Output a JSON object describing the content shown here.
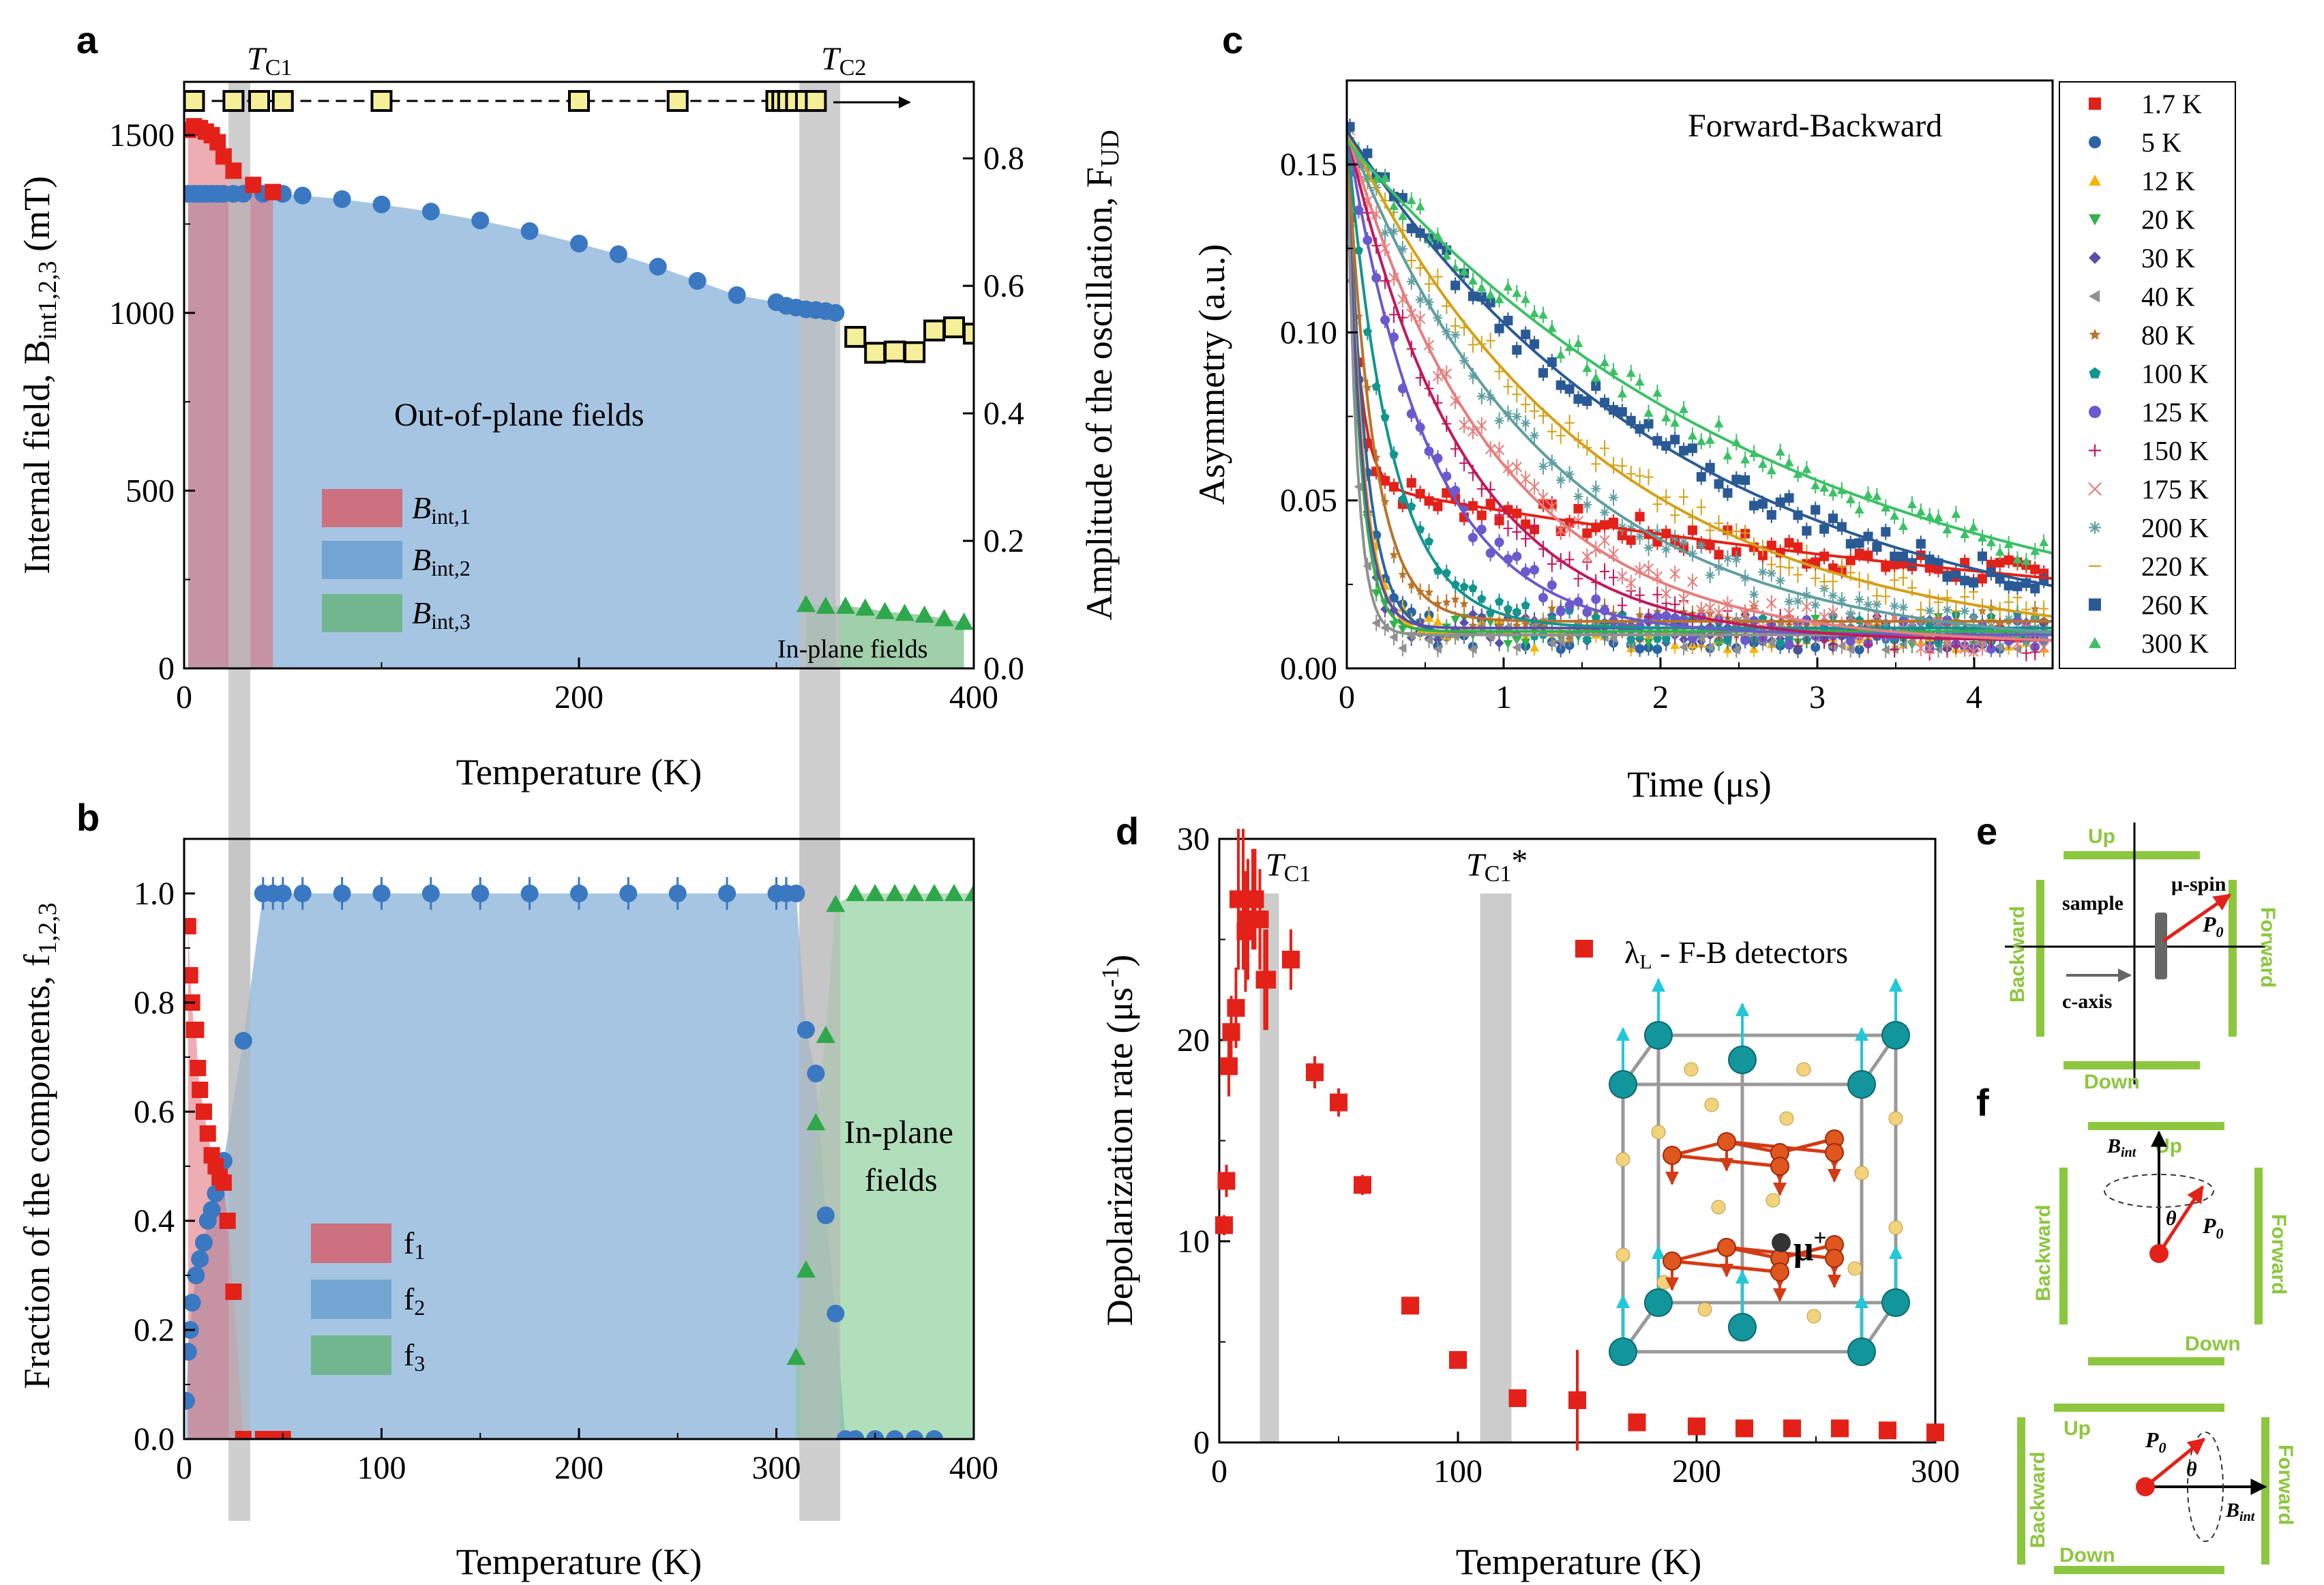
{
  "chart_data": [
    {
      "id": "a",
      "type": "scatter",
      "panel_label": "a",
      "xlabel": "Temperature (K)",
      "ylabel": "Internal field, B",
      "ylabel_sub": "int1,2,3",
      "ylabel_unit": " (mT)",
      "y2label": "Amplitude of the oscillation, F",
      "y2label_sub": "UD",
      "xlim": [
        0,
        400
      ],
      "ylim": [
        0,
        1650
      ],
      "y2lim": [
        0,
        0.92
      ],
      "xticks": [
        "0",
        "200",
        "400"
      ],
      "yticks": [
        "0",
        "500",
        "1000",
        "1500"
      ],
      "y2ticks": [
        "0.0",
        "0.2",
        "0.4",
        "0.6",
        "0.8"
      ],
      "markers": {
        "tc1": "T",
        "tc1_sub": "C1",
        "tc2": "T",
        "tc2_sub": "C2",
        "tc1_T": 28,
        "tc2_T": 322
      },
      "annotations": {
        "out_of_plane": "Out-of-plane fields",
        "in_plane": "In-plane fields"
      },
      "legend": [
        {
          "name": "B",
          "sub": "int,1",
          "color": "#d9535f"
        },
        {
          "name": "B",
          "sub": "int,2",
          "color": "#6a9fd0"
        },
        {
          "name": "B",
          "sub": "int,3",
          "color": "#5fb072"
        }
      ],
      "series": [
        {
          "name": "B_int,1",
          "color": "#e32119",
          "x": [
            2,
            5,
            8,
            11,
            14,
            17,
            20,
            25,
            35,
            45
          ],
          "y": [
            1515,
            1525,
            1520,
            1510,
            1500,
            1480,
            1440,
            1400,
            1360,
            1340
          ]
        },
        {
          "name": "B_int,2",
          "color": "#3a78c1",
          "x": [
            2,
            5,
            8,
            11,
            14,
            17,
            20,
            25,
            30,
            40,
            50,
            60,
            80,
            100,
            125,
            150,
            175,
            200,
            220,
            240,
            260,
            280,
            300,
            305,
            310,
            315,
            320,
            325,
            330
          ],
          "y": [
            1335,
            1335,
            1335,
            1335,
            1335,
            1335,
            1335,
            1335,
            1335,
            1335,
            1335,
            1330,
            1320,
            1305,
            1285,
            1260,
            1230,
            1195,
            1165,
            1130,
            1090,
            1050,
            1030,
            1020,
            1015,
            1010,
            1008,
            1005,
            1000
          ]
        },
        {
          "name": "B_int,3",
          "color": "#2ea84b",
          "x": [
            315,
            325,
            335,
            345,
            355,
            365,
            375,
            385,
            395
          ],
          "y": [
            180,
            175,
            175,
            170,
            160,
            155,
            150,
            140,
            130
          ]
        },
        {
          "name": "F_UD",
          "color": "#f5ef9a",
          "axis": "right",
          "x": [
            5,
            25,
            38,
            50,
            100,
            200,
            250,
            300,
            303,
            306,
            310,
            315,
            320,
            340,
            350,
            360,
            370,
            380,
            390,
            400
          ],
          "y": [
            0.89,
            0.89,
            0.89,
            0.89,
            0.89,
            0.89,
            0.89,
            0.89,
            0.89,
            0.89,
            0.89,
            0.89,
            0.89,
            0.52,
            0.495,
            0.497,
            0.496,
            0.53,
            0.535,
            0.525
          ]
        }
      ]
    },
    {
      "id": "b",
      "type": "scatter",
      "panel_label": "b",
      "xlabel": "Temperature (K)",
      "ylabel": "Fraction of the components, f",
      "ylabel_sub": "1,2,3",
      "xlim": [
        0,
        400
      ],
      "ylim": [
        0,
        1.1
      ],
      "xticks": [
        "0",
        "100",
        "200",
        "300",
        "400"
      ],
      "yticks": [
        "0.0",
        "0.2",
        "0.4",
        "0.6",
        "0.8",
        "1.0"
      ],
      "annotations": {
        "in_plane_1": "In-plane",
        "in_plane_2": "fields"
      },
      "legend": [
        {
          "name": "f",
          "sub": "1",
          "color": "#d9535f"
        },
        {
          "name": "f",
          "sub": "2",
          "color": "#6a9fd0"
        },
        {
          "name": "f",
          "sub": "3",
          "color": "#5fb072"
        }
      ],
      "series": [
        {
          "name": "f1",
          "color": "#e32119",
          "x": [
            2,
            3,
            4,
            5,
            6,
            7,
            8,
            10,
            12,
            14,
            16,
            18,
            20,
            22,
            25,
            30,
            40,
            45,
            50
          ],
          "y": [
            0.94,
            0.85,
            0.8,
            0.75,
            0.75,
            0.68,
            0.64,
            0.6,
            0.56,
            0.52,
            0.5,
            0.48,
            0.47,
            0.4,
            0.27,
            0.0,
            0.0,
            0.0,
            0.0
          ]
        },
        {
          "name": "f2",
          "color": "#3a78c1",
          "x": [
            1,
            2,
            3,
            4,
            6,
            8,
            10,
            12,
            14,
            16,
            18,
            20,
            30,
            40,
            45,
            50,
            60,
            80,
            100,
            125,
            150,
            175,
            200,
            225,
            250,
            275,
            300,
            305,
            310,
            315,
            320,
            325,
            330,
            335,
            340,
            350,
            360,
            370,
            380
          ],
          "y": [
            0.07,
            0.16,
            0.2,
            0.25,
            0.3,
            0.33,
            0.36,
            0.4,
            0.42,
            0.45,
            0.5,
            0.51,
            0.73,
            1.0,
            1.0,
            1.0,
            1.0,
            1.0,
            1.0,
            1.0,
            1.0,
            1.0,
            1.0,
            1.0,
            1.0,
            1.0,
            1.0,
            1.0,
            1.0,
            0.75,
            0.67,
            0.41,
            0.23,
            0.0,
            0.0,
            0.0,
            0.0,
            0.0,
            0.0
          ]
        },
        {
          "name": "f3",
          "color": "#2ea84b",
          "x": [
            310,
            315,
            320,
            325,
            330,
            340,
            350,
            360,
            370,
            380,
            390,
            400
          ],
          "y": [
            0.15,
            0.31,
            0.58,
            0.74,
            0.98,
            1.0,
            1.0,
            1.0,
            1.0,
            1.0,
            1.0,
            1.0
          ]
        }
      ]
    },
    {
      "id": "c",
      "type": "line",
      "panel_label": "c",
      "title": "Forward-Backward",
      "xlabel": "Time (μs)",
      "ylabel": "Asymmetry (a.u.)",
      "xlim": [
        0,
        4.5
      ],
      "ylim": [
        0,
        0.175
      ],
      "xticks": [
        "0",
        "1",
        "2",
        "3",
        "4"
      ],
      "yticks": [
        "0.00",
        "0.05",
        "0.10",
        "0.15"
      ],
      "legend_labels": [
        "1.7 K",
        "5 K",
        "12 K",
        "20 K",
        "30 K",
        "40 K",
        "80 K",
        "100 K",
        "125 K",
        "150 K",
        "175 K",
        "200 K",
        "220 K",
        "260 K",
        "300 K"
      ],
      "series": [
        {
          "name": "1.7 K",
          "color": "#e32119",
          "marker": "square",
          "a0": 0.163,
          "fast": 0.105,
          "lf": 14.0,
          "slow": 0.055,
          "ls": 0.16,
          "base": 0.0
        },
        {
          "name": "5 K",
          "color": "#2a64a6",
          "marker": "circle",
          "a0": 0.163,
          "fast": 0.0,
          "lf": 0.0,
          "slow": 0.163,
          "ls": 8.5,
          "base": 0.01
        },
        {
          "name": "12 K",
          "color": "#f5b400",
          "marker": "triangle-up",
          "a0": 0.16,
          "fast": 0.0,
          "lf": 0.0,
          "slow": 0.16,
          "ls": 10.0,
          "base": 0.01
        },
        {
          "name": "20 K",
          "color": "#2fb34a",
          "marker": "triangle-down",
          "a0": 0.16,
          "fast": 0.0,
          "lf": 0.0,
          "slow": 0.16,
          "ls": 12.0,
          "base": 0.011
        },
        {
          "name": "30 K",
          "color": "#5a4fa8",
          "marker": "diamond",
          "a0": 0.16,
          "fast": 0.0,
          "lf": 0.0,
          "slow": 0.16,
          "ls": 11.0,
          "base": 0.012
        },
        {
          "name": "40 K",
          "color": "#909090",
          "marker": "triangle-left",
          "a0": 0.16,
          "fast": 0.0,
          "lf": 0.0,
          "slow": 0.16,
          "ls": 16.0,
          "base": 0.01
        },
        {
          "name": "80 K",
          "color": "#b8742a",
          "marker": "star",
          "a0": 0.16,
          "fast": 0.0,
          "lf": 0.0,
          "slow": 0.16,
          "ls": 6.0,
          "base": 0.014
        },
        {
          "name": "100 K",
          "color": "#12958f",
          "marker": "pentagon",
          "a0": 0.16,
          "fast": 0.0,
          "lf": 0.0,
          "slow": 0.16,
          "ls": 3.6,
          "base": 0.012
        },
        {
          "name": "125 K",
          "color": "#6a5acd",
          "marker": "circle",
          "a0": 0.16,
          "fast": 0.0,
          "lf": 0.0,
          "slow": 0.16,
          "ls": 1.9,
          "base": 0.01
        },
        {
          "name": "150 K",
          "color": "#c2185b",
          "marker": "plus",
          "a0": 0.16,
          "fast": 0.0,
          "lf": 0.0,
          "slow": 0.16,
          "ls": 1.35,
          "base": 0.008
        },
        {
          "name": "175 K",
          "color": "#e67e7e",
          "marker": "cross",
          "a0": 0.16,
          "fast": 0.0,
          "lf": 0.0,
          "slow": 0.16,
          "ls": 1.05,
          "base": 0.007
        },
        {
          "name": "200 K",
          "color": "#5f9ea0",
          "marker": "asterisk",
          "a0": 0.16,
          "fast": 0.0,
          "lf": 0.0,
          "slow": 0.16,
          "ls": 0.78,
          "base": 0.006
        },
        {
          "name": "220 K",
          "color": "#d4a017",
          "marker": "dash",
          "a0": 0.16,
          "fast": 0.0,
          "lf": 0.0,
          "slow": 0.16,
          "ls": 0.62,
          "base": 0.006
        },
        {
          "name": "260 K",
          "color": "#2a5a95",
          "marker": "square",
          "a0": 0.16,
          "fast": 0.0,
          "lf": 0.0,
          "slow": 0.16,
          "ls": 0.46,
          "base": 0.005
        },
        {
          "name": "300 K",
          "color": "#3cc066",
          "marker": "triangle-up",
          "a0": 0.157,
          "fast": 0.0,
          "lf": 0.0,
          "slow": 0.157,
          "ls": 0.36,
          "base": 0.004
        }
      ]
    },
    {
      "id": "d",
      "type": "scatter",
      "panel_label": "d",
      "xlabel": "Temperature (K)",
      "ylabel": "Depolarization rate (μs",
      "ylabel_sup": "-1",
      "ylabel_end": ")",
      "xlim": [
        0,
        300
      ],
      "ylim": [
        0,
        30
      ],
      "xticks": [
        "0",
        "100",
        "200",
        "300"
      ],
      "yticks": [
        "0",
        "10",
        "20",
        "30"
      ],
      "markers": {
        "tc1": "T",
        "tc1_sub": "C1",
        "tc1s": "T",
        "tc1s_sub": "C1",
        "tc1s_star": "*",
        "tc1_T": 21,
        "tc1s_T": 119
      },
      "legend": [
        {
          "name": "λ",
          "sub": "L",
          "rest": " - F-B detectors",
          "color": "#e32119"
        }
      ],
      "inset": {
        "muon_label": "μ",
        "muon_sup": "+"
      },
      "series": [
        {
          "name": "lambda_L",
          "color": "#e32119",
          "x": [
            2,
            3,
            4,
            5,
            7,
            8,
            10,
            11,
            12,
            14,
            15,
            17,
            19,
            20,
            30,
            40,
            50,
            60,
            80,
            100,
            125,
            150,
            175,
            200,
            220,
            240,
            260,
            280,
            300
          ],
          "y": [
            10.8,
            13.0,
            18.7,
            20.4,
            21.6,
            27.0,
            27.0,
            25.4,
            26.0,
            27.0,
            27.0,
            26.0,
            23.0,
            23.0,
            24.0,
            18.4,
            16.9,
            12.8,
            6.8,
            4.1,
            2.2,
            2.1,
            1.0,
            0.8,
            0.7,
            0.7,
            0.7,
            0.6,
            0.5
          ],
          "err": [
            0.5,
            0.8,
            1.5,
            1.8,
            2.0,
            3.5,
            3.5,
            3.0,
            3.0,
            2.5,
            2.5,
            2.5,
            2.5,
            2.5,
            1.5,
            0.8,
            0.7,
            0.5,
            0.4,
            0.3,
            0.3,
            2.5,
            0.3,
            0.2,
            0.2,
            0.2,
            0.2,
            0.2,
            0.2
          ]
        }
      ]
    }
  ],
  "panel_e": {
    "label": "e",
    "up": "Up",
    "down": "Down",
    "backward": "Backward",
    "forward": "Forward",
    "sample": "sample",
    "caxis": "c-axis",
    "muspin": "μ-spin",
    "p0": "P",
    "p0_sub": "0"
  },
  "panel_f": {
    "label": "f",
    "up": "Up",
    "down": "Down",
    "backward": "Backward",
    "forward": "Forward",
    "bint": "B",
    "bint_sub": "int",
    "theta": "θ",
    "p0": "P",
    "p0_sub": "0"
  },
  "colors": {
    "gray_band": "#bfbfbf",
    "green_det": "#8dc63f",
    "red": "#e32119"
  }
}
